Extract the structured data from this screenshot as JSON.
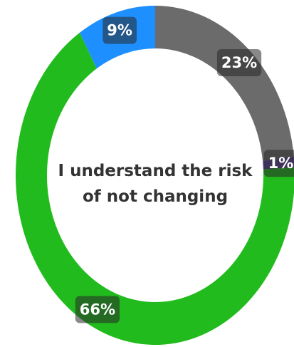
{
  "chart_data": {
    "type": "donut",
    "title": "I understand the risk of not changing",
    "categories": [
      "Gray",
      "Purple",
      "Green",
      "Blue"
    ],
    "values": [
      23,
      1,
      66,
      9
    ],
    "value_labels": [
      "23%",
      "1%",
      "66%",
      "9%"
    ],
    "colors": [
      "#6b6b6b",
      "#5a3f96",
      "#22bb1e",
      "#1e8fff"
    ]
  }
}
